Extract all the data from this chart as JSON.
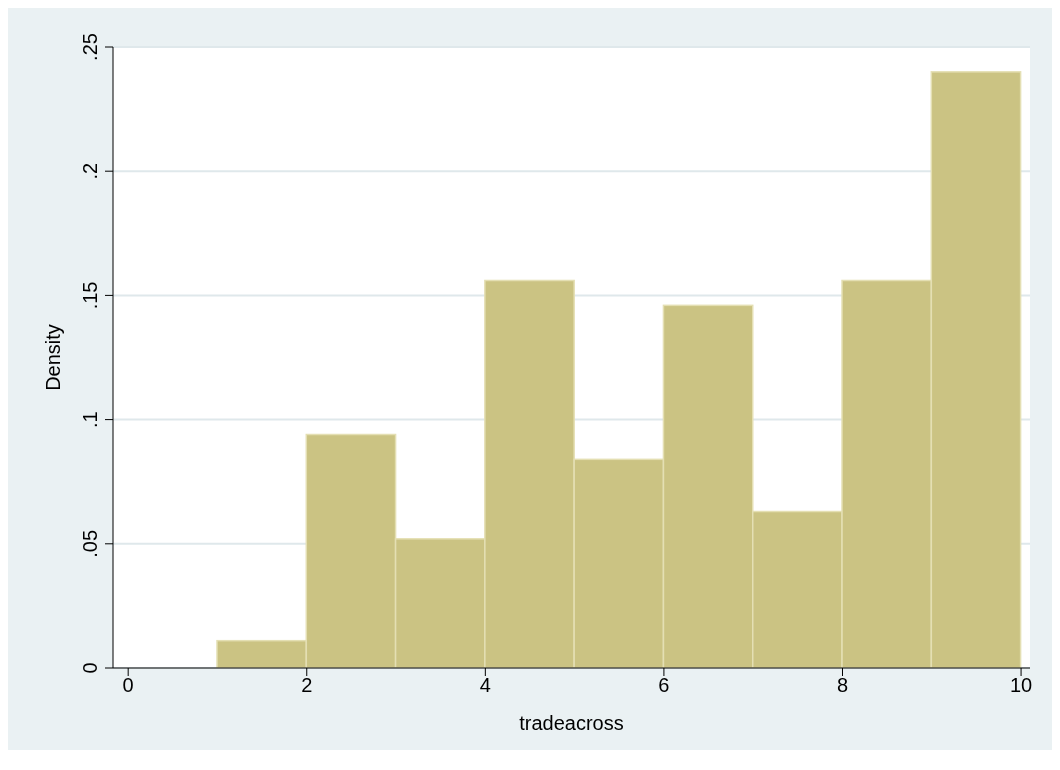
{
  "chart_data": {
    "type": "histogram",
    "xlabel": "tradeacross",
    "ylabel": "Density",
    "bins": [
      1,
      2,
      3,
      4,
      5,
      6,
      7,
      8,
      9,
      10
    ],
    "values": [
      0.011,
      0.094,
      0.052,
      0.156,
      0.084,
      0.146,
      0.063,
      0.156,
      0.24
    ],
    "color": "#cbc383",
    "xlim": [
      -0.17,
      10.1
    ],
    "xticks": [
      0,
      2,
      4,
      6,
      8,
      10
    ],
    "ylim": [
      0,
      0.25
    ],
    "yticks": [
      0,
      {
        "value": 0.05,
        "label": ".05"
      },
      {
        "value": 0.1,
        "label": ".1"
      },
      {
        "value": 0.15,
        "label": ".15"
      },
      {
        "value": 0.2,
        "label": ".2"
      },
      {
        "value": 0.25,
        "label": ".25"
      }
    ],
    "grid": "y",
    "legend": false
  }
}
